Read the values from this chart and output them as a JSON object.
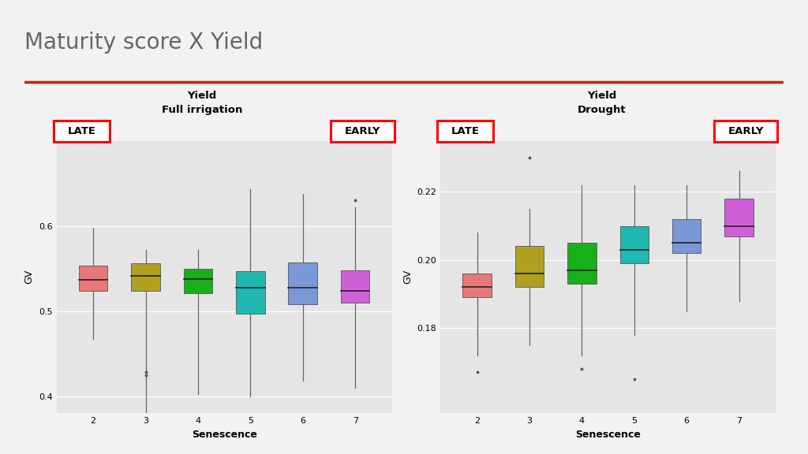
{
  "title": "Maturity score X Yield",
  "title_color": "#666666",
  "bg_color": "#f2f2f2",
  "plot_bg_color": "#e5e5e5",
  "red_line_color": "#cc2200",
  "panels": [
    {
      "subtitle": "Yield\nFull irrigation",
      "ylabel": "GV",
      "xlabel": "Senescence",
      "ylim": [
        0.38,
        0.7
      ],
      "yticks": [
        0.4,
        0.5,
        0.6
      ],
      "ytick_labels": [
        "0.4",
        "0.5",
        "0.6"
      ],
      "categories": [
        2,
        3,
        4,
        5,
        6,
        7
      ],
      "colors": [
        "#e87878",
        "#b0a020",
        "#18b018",
        "#20b8b0",
        "#7898d8",
        "#d060d8"
      ],
      "boxes": [
        {
          "q1": 0.524,
          "median": 0.537,
          "q3": 0.553,
          "whislo": 0.467,
          "whishi": 0.598,
          "fliers": []
        },
        {
          "q1": 0.524,
          "median": 0.541,
          "q3": 0.556,
          "whislo": 0.35,
          "whishi": 0.572,
          "fliers": [
            0.425,
            0.428
          ]
        },
        {
          "q1": 0.521,
          "median": 0.538,
          "q3": 0.55,
          "whislo": 0.402,
          "whishi": 0.572,
          "fliers": []
        },
        {
          "q1": 0.497,
          "median": 0.527,
          "q3": 0.547,
          "whislo": 0.4,
          "whishi": 0.643,
          "fliers": []
        },
        {
          "q1": 0.508,
          "median": 0.527,
          "q3": 0.557,
          "whislo": 0.418,
          "whishi": 0.638,
          "fliers": []
        },
        {
          "q1": 0.51,
          "median": 0.524,
          "q3": 0.548,
          "whislo": 0.41,
          "whishi": 0.622,
          "fliers": [
            0.63
          ]
        }
      ]
    },
    {
      "subtitle": "Yield\nDrought",
      "ylabel": "GV",
      "xlabel": "Senescence",
      "ylim": [
        0.155,
        0.235
      ],
      "yticks": [
        0.18,
        0.2,
        0.22
      ],
      "ytick_labels": [
        "0.18",
        "0.20",
        "0.22"
      ],
      "categories": [
        2,
        3,
        4,
        5,
        6,
        7
      ],
      "colors": [
        "#e87878",
        "#b0a020",
        "#18b018",
        "#20b8b0",
        "#7898d8",
        "#d060d8"
      ],
      "boxes": [
        {
          "q1": 0.189,
          "median": 0.192,
          "q3": 0.196,
          "whislo": 0.172,
          "whishi": 0.208,
          "fliers": [
            0.167
          ]
        },
        {
          "q1": 0.192,
          "median": 0.196,
          "q3": 0.204,
          "whislo": 0.175,
          "whishi": 0.215,
          "fliers": [
            0.23
          ]
        },
        {
          "q1": 0.193,
          "median": 0.197,
          "q3": 0.205,
          "whislo": 0.172,
          "whishi": 0.222,
          "fliers": [
            0.168
          ]
        },
        {
          "q1": 0.199,
          "median": 0.203,
          "q3": 0.21,
          "whislo": 0.178,
          "whishi": 0.222,
          "fliers": [
            0.165
          ]
        },
        {
          "q1": 0.202,
          "median": 0.205,
          "q3": 0.212,
          "whislo": 0.185,
          "whishi": 0.222,
          "fliers": []
        },
        {
          "q1": 0.207,
          "median": 0.21,
          "q3": 0.218,
          "whislo": 0.188,
          "whishi": 0.226,
          "fliers": []
        }
      ]
    }
  ]
}
